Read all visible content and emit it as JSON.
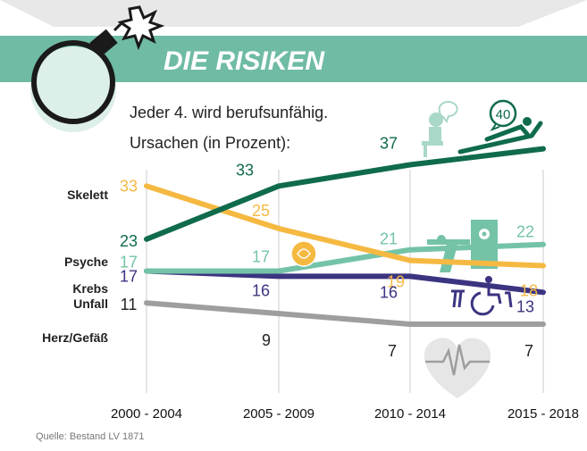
{
  "header": {
    "title": "DIE RISIKEN",
    "subtitle": "Jeder 4. wird berufsunfähig.",
    "caption": "Ursachen (in Prozent):",
    "badge": "40"
  },
  "source": "Quelle: Bestand LV 1871",
  "colors": {
    "banner": "#6fbba5",
    "top_gray": "#e6e6e6",
    "grid": "#d9d9d9",
    "label": "#333333"
  },
  "chart_data": {
    "type": "line",
    "categories": [
      "2000 - 2004",
      "2005 - 2009",
      "2010 - 2014",
      "2015 - 2018"
    ],
    "ylim": [
      0,
      42
    ],
    "grid": "vertical",
    "series": [
      {
        "name": "Skelett",
        "values": [
          33,
          25,
          19,
          18
        ],
        "color": "#f5b942",
        "label_color": "#f5b942"
      },
      {
        "name": "Psyche",
        "values": [
          23,
          33,
          37,
          40
        ],
        "color": "#0f6b4c",
        "label_color": "#0f6b4c"
      },
      {
        "name": "Krebs",
        "values": [
          17,
          17,
          21,
          22
        ],
        "color": "#74c3a7",
        "label_color": "#74c3a7"
      },
      {
        "name": "Unfall",
        "values": [
          17,
          16,
          16,
          13
        ],
        "color": "#3b3481",
        "label_color": "#3b3481"
      },
      {
        "name": "Herz/Gefäß",
        "values": [
          11,
          9,
          7,
          7
        ],
        "color": "#9e9e9e",
        "label_color": "#222222"
      }
    ]
  }
}
